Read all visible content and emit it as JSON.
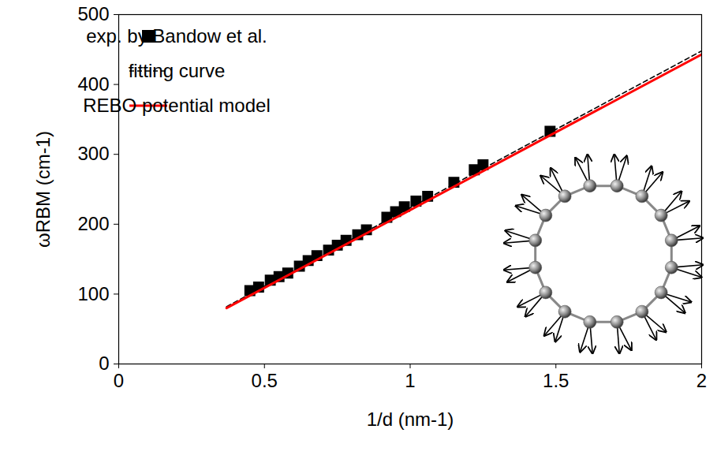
{
  "chart_data": {
    "type": "line",
    "x_label": "1/d (nm-1)",
    "y_label": "ωRBM (cm-1)",
    "xlim": [
      0,
      2
    ],
    "ylim": [
      0,
      500
    ],
    "xticks": [
      0,
      0.5,
      1,
      1.5,
      2
    ],
    "yticks": [
      0,
      100,
      200,
      300,
      400,
      500
    ],
    "legend": "upper left",
    "series": [
      {
        "name": "exp. by Bandow et al.",
        "type": "scatter",
        "marker": "square",
        "color": "#000000",
        "x": [
          0.45,
          0.48,
          0.52,
          0.55,
          0.58,
          0.62,
          0.65,
          0.68,
          0.72,
          0.75,
          0.78,
          0.82,
          0.85,
          0.92,
          0.95,
          0.98,
          1.02,
          1.06,
          1.15,
          1.22,
          1.25,
          1.48
        ],
        "values": [
          105,
          110,
          120,
          125,
          130,
          140,
          148,
          155,
          163,
          170,
          177,
          185,
          192,
          210,
          218,
          225,
          233,
          240,
          260,
          278,
          285,
          333
        ]
      },
      {
        "name": "fitting curve",
        "type": "line",
        "line_style": "dashed",
        "color": "#000000",
        "x": [
          0.37,
          2
        ],
        "values": [
          82,
          448
        ]
      },
      {
        "name": "REBO potential model",
        "type": "line",
        "line_style": "solid",
        "color": "#ff0000",
        "x": [
          0.37,
          2
        ],
        "values": [
          80,
          443
        ]
      }
    ]
  }
}
